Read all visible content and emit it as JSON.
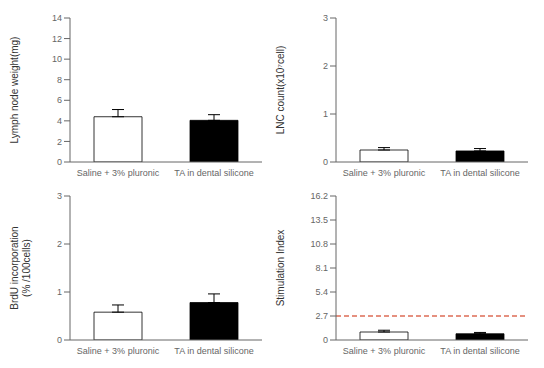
{
  "chart_data": [
    {
      "type": "bar",
      "ylabel": "Lymph node weight(mg)",
      "categories": [
        "Saline + 3% pluronic",
        "TA in dental silicone"
      ],
      "values": [
        4.4,
        4.05
      ],
      "error_upper": [
        0.7,
        0.55
      ],
      "colors": [
        "white",
        "black"
      ],
      "ylim": [
        0,
        14
      ],
      "yticks": [
        0,
        2,
        4,
        6,
        8,
        10,
        12,
        14
      ]
    },
    {
      "type": "bar",
      "ylabel": "LNC count(x10⁷cell)",
      "categories": [
        "Saline + 3% pluronic",
        "TA in dental silicone"
      ],
      "values": [
        0.25,
        0.23
      ],
      "error_upper": [
        0.05,
        0.05
      ],
      "colors": [
        "white",
        "black"
      ],
      "ylim": [
        0,
        3
      ],
      "yticks": [
        0,
        1,
        2,
        3
      ]
    },
    {
      "type": "bar",
      "ylabel": "BrdU incorporation\n(% /100cells)",
      "categories": [
        "Saline + 3% pluronic",
        "TA in dental silicone"
      ],
      "values": [
        0.58,
        0.78
      ],
      "error_upper": [
        0.15,
        0.18
      ],
      "colors": [
        "white",
        "black"
      ],
      "ylim": [
        0,
        3
      ],
      "yticks": [
        0,
        1,
        2,
        3
      ]
    },
    {
      "type": "bar",
      "ylabel": "Stimulation Index",
      "categories": [
        "Saline + 3% pluronic",
        "TA in dental silicone"
      ],
      "values": [
        0.9,
        0.7
      ],
      "error_upper": [
        0.2,
        0.15
      ],
      "colors": [
        "white",
        "black"
      ],
      "ylim": [
        0,
        16.2
      ],
      "yticks": [
        0,
        2.7,
        5.4,
        8.1,
        10.8,
        13.5,
        16.2
      ],
      "reference_line": {
        "value": 2.7,
        "color": "#cc2200",
        "line_style": "dashed"
      }
    }
  ]
}
